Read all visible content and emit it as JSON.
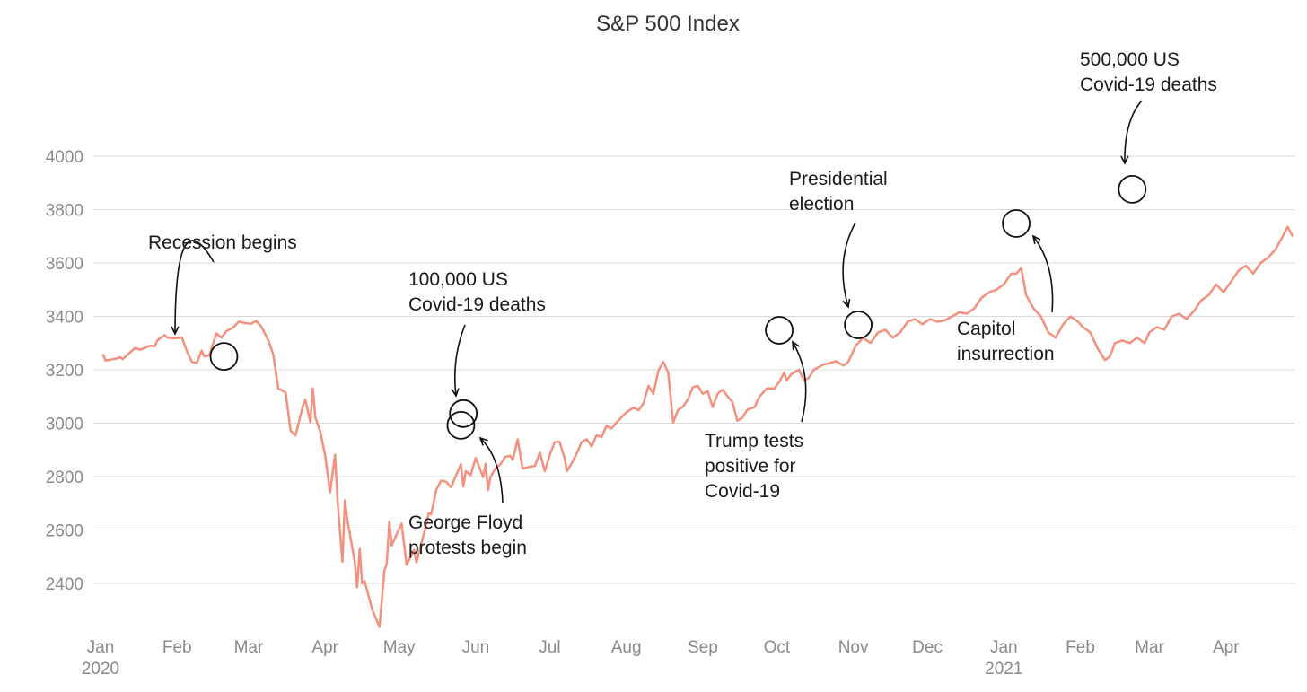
{
  "chart_data": {
    "type": "line",
    "title": "S&P 500 Index",
    "xlabel": "",
    "ylabel": "",
    "ylim": [
      2240,
      4200
    ],
    "yticks": [
      2400,
      2600,
      2800,
      3000,
      3200,
      3400,
      3600,
      3800,
      4000
    ],
    "grid": true,
    "line_color": "#f4907e",
    "xticks": [
      {
        "date": "2020-01-01",
        "label": "Jan",
        "sub": "2020"
      },
      {
        "date": "2020-02-01",
        "label": "Feb",
        "sub": ""
      },
      {
        "date": "2020-03-01",
        "label": "Mar",
        "sub": ""
      },
      {
        "date": "2020-04-01",
        "label": "Apr",
        "sub": ""
      },
      {
        "date": "2020-05-01",
        "label": "May",
        "sub": ""
      },
      {
        "date": "2020-06-01",
        "label": "Jun",
        "sub": ""
      },
      {
        "date": "2020-07-01",
        "label": "Jul",
        "sub": ""
      },
      {
        "date": "2020-08-01",
        "label": "Aug",
        "sub": ""
      },
      {
        "date": "2020-09-01",
        "label": "Sep",
        "sub": ""
      },
      {
        "date": "2020-10-01",
        "label": "Oct",
        "sub": ""
      },
      {
        "date": "2020-11-01",
        "label": "Nov",
        "sub": ""
      },
      {
        "date": "2020-12-01",
        "label": "Dec",
        "sub": ""
      },
      {
        "date": "2021-01-01",
        "label": "Jan",
        "sub": "2021"
      },
      {
        "date": "2021-02-01",
        "label": "Feb",
        "sub": ""
      },
      {
        "date": "2021-03-01",
        "label": "Mar",
        "sub": ""
      },
      {
        "date": "2021-04-01",
        "label": "Apr",
        "sub": ""
      }
    ],
    "series": [
      {
        "name": "",
        "points": [
          [
            "2020-01-02",
            3258
          ],
          [
            "2020-01-03",
            3235
          ],
          [
            "2020-01-07",
            3241
          ],
          [
            "2020-01-09",
            3247
          ],
          [
            "2020-01-10",
            3240
          ],
          [
            "2020-01-13",
            3265
          ],
          [
            "2020-01-15",
            3282
          ],
          [
            "2020-01-17",
            3275
          ],
          [
            "2020-01-21",
            3290
          ],
          [
            "2020-01-23",
            3288
          ],
          [
            "2020-01-24",
            3310
          ],
          [
            "2020-01-27",
            3330
          ],
          [
            "2020-01-28",
            3320
          ],
          [
            "2020-01-31",
            3318
          ],
          [
            "2020-02-03",
            3321
          ],
          [
            "2020-02-05",
            3270
          ],
          [
            "2020-02-07",
            3230
          ],
          [
            "2020-02-09",
            3225
          ],
          [
            "2020-02-11",
            3272
          ],
          [
            "2020-02-12",
            3250
          ],
          [
            "2020-02-14",
            3254
          ],
          [
            "2020-02-17",
            3336
          ],
          [
            "2020-02-19",
            3320
          ],
          [
            "2020-02-21",
            3345
          ],
          [
            "2020-02-24",
            3360
          ],
          [
            "2020-02-26",
            3380
          ],
          [
            "2020-02-28",
            3376
          ],
          [
            "2020-03-02",
            3372
          ],
          [
            "2020-03-04",
            3383
          ],
          [
            "2020-03-06",
            3364
          ],
          [
            "2020-03-09",
            3310
          ],
          [
            "2020-03-11",
            3256
          ],
          [
            "2020-03-13",
            3130
          ],
          [
            "2020-03-16",
            3115
          ],
          [
            "2020-03-18",
            2972
          ],
          [
            "2020-03-20",
            2954
          ],
          [
            "2020-03-23",
            3066
          ],
          [
            "2020-03-24",
            3088
          ],
          [
            "2020-03-26",
            3004
          ],
          [
            "2020-03-27",
            3130
          ],
          [
            "2020-03-28",
            3023
          ],
          [
            "2020-03-30",
            2970
          ],
          [
            "2020-04-01",
            2880
          ],
          [
            "2020-04-03",
            2741
          ],
          [
            "2020-04-05",
            2882
          ],
          [
            "2020-04-06",
            2711
          ],
          [
            "2020-04-08",
            2481
          ],
          [
            "2020-04-09",
            2711
          ],
          [
            "2020-04-10",
            2640
          ],
          [
            "2020-04-13",
            2480
          ],
          [
            "2020-04-14",
            2386
          ],
          [
            "2020-04-15",
            2529
          ],
          [
            "2020-04-16",
            2399
          ],
          [
            "2020-04-17",
            2409
          ],
          [
            "2020-04-20",
            2305
          ],
          [
            "2020-04-23",
            2237
          ],
          [
            "2020-04-25",
            2447
          ],
          [
            "2020-04-26",
            2475
          ],
          [
            "2020-04-27",
            2630
          ],
          [
            "2020-04-28",
            2542
          ],
          [
            "2020-04-30",
            2584
          ],
          [
            "2020-05-02",
            2624
          ],
          [
            "2020-05-04",
            2470
          ],
          [
            "2020-05-05",
            2488
          ],
          [
            "2020-05-07",
            2526
          ],
          [
            "2020-05-08",
            2479
          ],
          [
            "2020-05-11",
            2585
          ],
          [
            "2020-05-13",
            2663
          ],
          [
            "2020-05-14",
            2659
          ],
          [
            "2020-05-16",
            2750
          ],
          [
            "2020-05-18",
            2785
          ],
          [
            "2020-05-20",
            2781
          ],
          [
            "2020-05-22",
            2760
          ],
          [
            "2020-05-26",
            2846
          ],
          [
            "2020-05-27",
            2763
          ],
          [
            "2020-05-28",
            2820
          ],
          [
            "2020-05-30",
            2805
          ],
          [
            "2020-06-01",
            2870
          ],
          [
            "2020-06-02",
            2846
          ],
          [
            "2020-06-04",
            2798
          ],
          [
            "2020-06-05",
            2848
          ],
          [
            "2020-06-06",
            2749
          ],
          [
            "2020-06-07",
            2799
          ],
          [
            "2020-06-09",
            2830
          ],
          [
            "2020-06-11",
            2846
          ],
          [
            "2020-06-13",
            2874
          ],
          [
            "2020-06-15",
            2878
          ],
          [
            "2020-06-16",
            2863
          ],
          [
            "2020-06-18",
            2940
          ],
          [
            "2020-06-20",
            2830
          ],
          [
            "2020-06-23",
            2837
          ],
          [
            "2020-06-25",
            2840
          ],
          [
            "2020-06-27",
            2890
          ],
          [
            "2020-06-29",
            2820
          ],
          [
            "2020-07-01",
            2880
          ],
          [
            "2020-07-03",
            2929
          ],
          [
            "2020-07-05",
            2930
          ],
          [
            "2020-07-07",
            2870
          ],
          [
            "2020-07-08",
            2820
          ],
          [
            "2020-07-10",
            2852
          ],
          [
            "2020-07-12",
            2888
          ],
          [
            "2020-07-14",
            2930
          ],
          [
            "2020-07-16",
            2940
          ],
          [
            "2020-07-18",
            2913
          ],
          [
            "2020-07-20",
            2955
          ],
          [
            "2020-07-22",
            2948
          ],
          [
            "2020-07-24",
            2990
          ],
          [
            "2020-07-26",
            2980
          ],
          [
            "2020-07-29",
            3012
          ],
          [
            "2020-08-01",
            3040
          ],
          [
            "2020-08-04",
            3058
          ],
          [
            "2020-08-06",
            3048
          ],
          [
            "2020-08-08",
            3075
          ],
          [
            "2020-08-10",
            3140
          ],
          [
            "2020-08-12",
            3110
          ],
          [
            "2020-08-14",
            3196
          ],
          [
            "2020-08-16",
            3230
          ],
          [
            "2020-08-18",
            3190
          ],
          [
            "2020-08-20",
            3002
          ],
          [
            "2020-08-22",
            3050
          ],
          [
            "2020-08-24",
            3062
          ],
          [
            "2020-08-26",
            3090
          ],
          [
            "2020-08-28",
            3135
          ],
          [
            "2020-08-30",
            3140
          ],
          [
            "2020-09-01",
            3110
          ],
          [
            "2020-09-03",
            3120
          ],
          [
            "2020-09-05",
            3060
          ],
          [
            "2020-09-07",
            3110
          ],
          [
            "2020-09-09",
            3125
          ],
          [
            "2020-09-11",
            3101
          ],
          [
            "2020-09-13",
            3080
          ],
          [
            "2020-09-15",
            3009
          ],
          [
            "2020-09-17",
            3020
          ],
          [
            "2020-09-19",
            3050
          ],
          [
            "2020-09-22",
            3060
          ],
          [
            "2020-09-24",
            3100
          ],
          [
            "2020-09-27",
            3130
          ],
          [
            "2020-09-30",
            3130
          ],
          [
            "2020-10-02",
            3155
          ],
          [
            "2020-10-04",
            3190
          ],
          [
            "2020-10-05",
            3160
          ],
          [
            "2020-10-07",
            3185
          ],
          [
            "2020-10-10",
            3200
          ],
          [
            "2020-10-12",
            3160
          ],
          [
            "2020-10-14",
            3170
          ],
          [
            "2020-10-16",
            3200
          ],
          [
            "2020-10-18",
            3210
          ],
          [
            "2020-10-20",
            3220
          ],
          [
            "2020-10-22",
            3224
          ],
          [
            "2020-10-25",
            3232
          ],
          [
            "2020-10-28",
            3216
          ],
          [
            "2020-10-30",
            3230
          ],
          [
            "2020-11-02",
            3290
          ],
          [
            "2020-11-05",
            3320
          ],
          [
            "2020-11-08",
            3300
          ],
          [
            "2020-11-11",
            3340
          ],
          [
            "2020-11-14",
            3350
          ],
          [
            "2020-11-17",
            3320
          ],
          [
            "2020-11-20",
            3340
          ],
          [
            "2020-11-23",
            3380
          ],
          [
            "2020-11-26",
            3390
          ],
          [
            "2020-11-29",
            3370
          ],
          [
            "2020-12-02",
            3390
          ],
          [
            "2020-12-05",
            3380
          ],
          [
            "2020-12-08",
            3385
          ],
          [
            "2020-12-11",
            3400
          ],
          [
            "2020-12-14",
            3415
          ],
          [
            "2020-12-17",
            3410
          ],
          [
            "2020-12-20",
            3430
          ],
          [
            "2020-12-23",
            3470
          ],
          [
            "2020-12-26",
            3490
          ],
          [
            "2020-12-29",
            3500
          ],
          [
            "2021-01-01",
            3520
          ],
          [
            "2021-01-04",
            3560
          ],
          [
            "2021-01-06",
            3560
          ],
          [
            "2021-01-08",
            3581
          ],
          [
            "2021-01-10",
            3480
          ],
          [
            "2021-01-13",
            3430
          ],
          [
            "2021-01-16",
            3400
          ],
          [
            "2021-01-19",
            3340
          ],
          [
            "2021-01-22",
            3320
          ],
          [
            "2021-01-25",
            3370
          ],
          [
            "2021-01-28",
            3400
          ],
          [
            "2021-01-31",
            3380
          ],
          [
            "2021-02-02",
            3360
          ],
          [
            "2021-02-05",
            3340
          ],
          [
            "2021-02-08",
            3280
          ],
          [
            "2021-02-11",
            3236
          ],
          [
            "2021-02-13",
            3250
          ],
          [
            "2021-02-15",
            3300
          ],
          [
            "2021-02-18",
            3310
          ],
          [
            "2021-02-21",
            3300
          ],
          [
            "2021-02-24",
            3320
          ],
          [
            "2021-02-27",
            3300
          ],
          [
            "2021-03-01",
            3340
          ],
          [
            "2021-03-04",
            3360
          ],
          [
            "2021-03-07",
            3350
          ],
          [
            "2021-03-10",
            3400
          ],
          [
            "2021-03-13",
            3410
          ],
          [
            "2021-03-16",
            3390
          ],
          [
            "2021-03-19",
            3420
          ],
          [
            "2021-03-22",
            3460
          ],
          [
            "2021-03-25",
            3480
          ],
          [
            "2021-03-28",
            3520
          ],
          [
            "2021-03-31",
            3490
          ],
          [
            "2021-04-03",
            3530
          ],
          [
            "2021-04-06",
            3570
          ],
          [
            "2021-04-09",
            3590
          ],
          [
            "2021-04-12",
            3560
          ],
          [
            "2021-04-15",
            3600
          ],
          [
            "2021-04-18",
            3620
          ],
          [
            "2021-04-21",
            3650
          ],
          [
            "2021-04-24",
            3700
          ],
          [
            "2021-04-26",
            3735
          ],
          [
            "2021-04-28",
            3700
          ]
        ]
      }
    ],
    "annotations": [
      {
        "lines": [
          "Recession begins"
        ],
        "date": "2020-02-20",
        "value": 3250
      },
      {
        "lines": [
          "100,000 US",
          "Covid-19 deaths"
        ],
        "date": "2020-05-27",
        "value": 3036
      },
      {
        "lines": [
          "George Floyd",
          "protests begin"
        ],
        "date": "2020-05-26",
        "value": 2992
      },
      {
        "lines": [
          "Trump tests",
          "positive for",
          "Covid-19"
        ],
        "date": "2020-10-02",
        "value": 3348
      },
      {
        "lines": [
          "Presidential",
          "election"
        ],
        "date": "2020-11-03",
        "value": 3368
      },
      {
        "lines": [
          "Capitol",
          "insurrection"
        ],
        "date": "2021-01-06",
        "value": 3748
      },
      {
        "lines": [
          "500,000 US",
          "Covid-19 deaths"
        ],
        "date": "2021-02-22",
        "value": 3876
      }
    ]
  }
}
